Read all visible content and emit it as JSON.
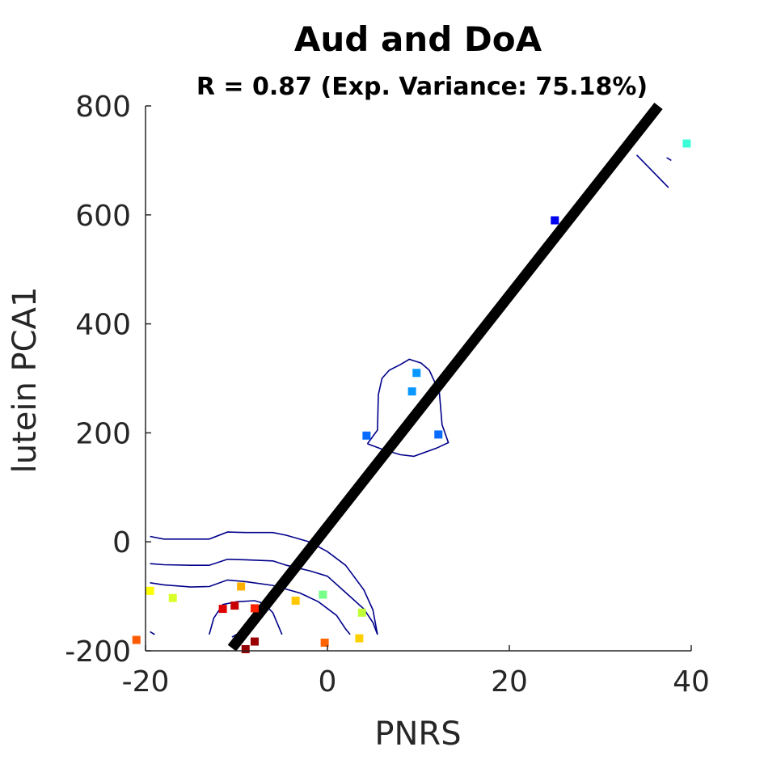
{
  "chart_data": {
    "type": "scatter",
    "title": "Aud and DoA",
    "subtitle": "R = 0.87 (Exp. Variance: 75.18%)",
    "xlabel": "PNRS",
    "ylabel": "lutein PCA1",
    "xlim": [
      -20,
      40
    ],
    "ylim": [
      -200,
      800
    ],
    "xticks": [
      -20,
      0,
      20,
      40
    ],
    "yticks": [
      -200,
      0,
      200,
      400,
      600,
      800
    ],
    "grid": false,
    "legend": "none",
    "axis_color": "#262626",
    "points": [
      {
        "x": -21.0,
        "y": -180,
        "color": "#ff5a00"
      },
      {
        "x": -19.5,
        "y": -90,
        "color": "#ffff00"
      },
      {
        "x": -17.0,
        "y": -103,
        "color": "#d8ff28"
      },
      {
        "x": -11.5,
        "y": -123,
        "color": "#e00000"
      },
      {
        "x": -10.2,
        "y": -117,
        "color": "#c80000"
      },
      {
        "x": -9.0,
        "y": -197,
        "color": "#960000"
      },
      {
        "x": -9.5,
        "y": -82,
        "color": "#ffb000"
      },
      {
        "x": -8.0,
        "y": -122,
        "color": "#ff2000"
      },
      {
        "x": -8.0,
        "y": -183,
        "color": "#9b0000"
      },
      {
        "x": -3.5,
        "y": -108,
        "color": "#ffc800"
      },
      {
        "x": -0.5,
        "y": -97,
        "color": "#78ff88"
      },
      {
        "x": -0.3,
        "y": -185,
        "color": "#ff6400"
      },
      {
        "x": 3.5,
        "y": -177,
        "color": "#ffd000"
      },
      {
        "x": 3.8,
        "y": -130,
        "color": "#c0ff38"
      },
      {
        "x": 4.3,
        "y": 195,
        "color": "#0a6cff"
      },
      {
        "x": 9.3,
        "y": 276,
        "color": "#0898ff"
      },
      {
        "x": 9.8,
        "y": 310,
        "color": "#0898ff"
      },
      {
        "x": 12.2,
        "y": 197,
        "color": "#0a6cff"
      },
      {
        "x": 25.0,
        "y": 590,
        "color": "#0000f0"
      },
      {
        "x": 39.5,
        "y": 731,
        "color": "#3cffd8"
      }
    ],
    "fit_line": {
      "x": [
        -10.5,
        36.4
      ],
      "y": [
        -195,
        800
      ],
      "color": "#000000"
    },
    "contours": {
      "color": "#00008b",
      "paths": [
        [
          [
            -19.5,
            10
          ],
          [
            -18,
            5
          ],
          [
            -15,
            5
          ],
          [
            -13,
            5
          ],
          [
            -11,
            18
          ],
          [
            -9,
            17
          ],
          [
            -6,
            17
          ],
          [
            -4.5,
            12
          ],
          [
            -2,
            0
          ],
          [
            0,
            -18
          ],
          [
            2,
            -43
          ],
          [
            4,
            -88
          ],
          [
            5,
            -125
          ],
          [
            5.5,
            -170
          ]
        ],
        [
          [
            -19.5,
            -40
          ],
          [
            -18,
            -42
          ],
          [
            -15,
            -43
          ],
          [
            -13,
            -43
          ],
          [
            -11,
            -32
          ],
          [
            -9,
            -33
          ],
          [
            -6,
            -35
          ],
          [
            -4.5,
            -43
          ],
          [
            -2,
            -53
          ],
          [
            0,
            -63
          ],
          [
            2,
            -93
          ],
          [
            4,
            -123
          ],
          [
            5,
            -148
          ],
          [
            5.5,
            -170
          ]
        ],
        [
          [
            -19.5,
            -75
          ],
          [
            -18,
            -79
          ],
          [
            -15,
            -83
          ],
          [
            -13,
            -82
          ],
          [
            -11,
            -70
          ],
          [
            -9,
            -73
          ],
          [
            -6,
            -80
          ],
          [
            -3,
            -94
          ],
          [
            -1,
            -110
          ],
          [
            1,
            -135
          ],
          [
            2,
            -160
          ],
          [
            2.5,
            -170
          ]
        ],
        [
          [
            -13,
            -170
          ],
          [
            -12.5,
            -140
          ],
          [
            -11.5,
            -115
          ],
          [
            -10,
            -110
          ],
          [
            -8,
            -108
          ],
          [
            -7,
            -113
          ],
          [
            -6,
            -130
          ],
          [
            -5.5,
            -150
          ],
          [
            -5,
            -170
          ]
        ],
        [
          [
            -10.5,
            -175
          ],
          [
            -10,
            -170
          ],
          [
            -9.5,
            -175
          ]
        ],
        [
          [
            -19.5,
            -165
          ],
          [
            -19,
            -170
          ]
        ],
        [
          [
            34,
            710
          ],
          [
            37.5,
            650
          ]
        ],
        [
          [
            37.3,
            705
          ],
          [
            37.8,
            700
          ]
        ],
        [
          [
            4.4,
            180
          ],
          [
            5.5,
            205
          ],
          [
            5.6,
            270
          ],
          [
            6,
            300
          ],
          [
            6.8,
            315
          ],
          [
            8,
            325
          ],
          [
            9,
            335
          ],
          [
            10.3,
            328
          ],
          [
            11.2,
            315
          ],
          [
            12.3,
            275
          ],
          [
            12.6,
            215
          ],
          [
            13.3,
            182
          ],
          [
            12,
            172
          ],
          [
            9.5,
            157
          ],
          [
            8,
            160
          ],
          [
            6,
            170
          ],
          [
            4.4,
            180
          ]
        ]
      ]
    }
  }
}
